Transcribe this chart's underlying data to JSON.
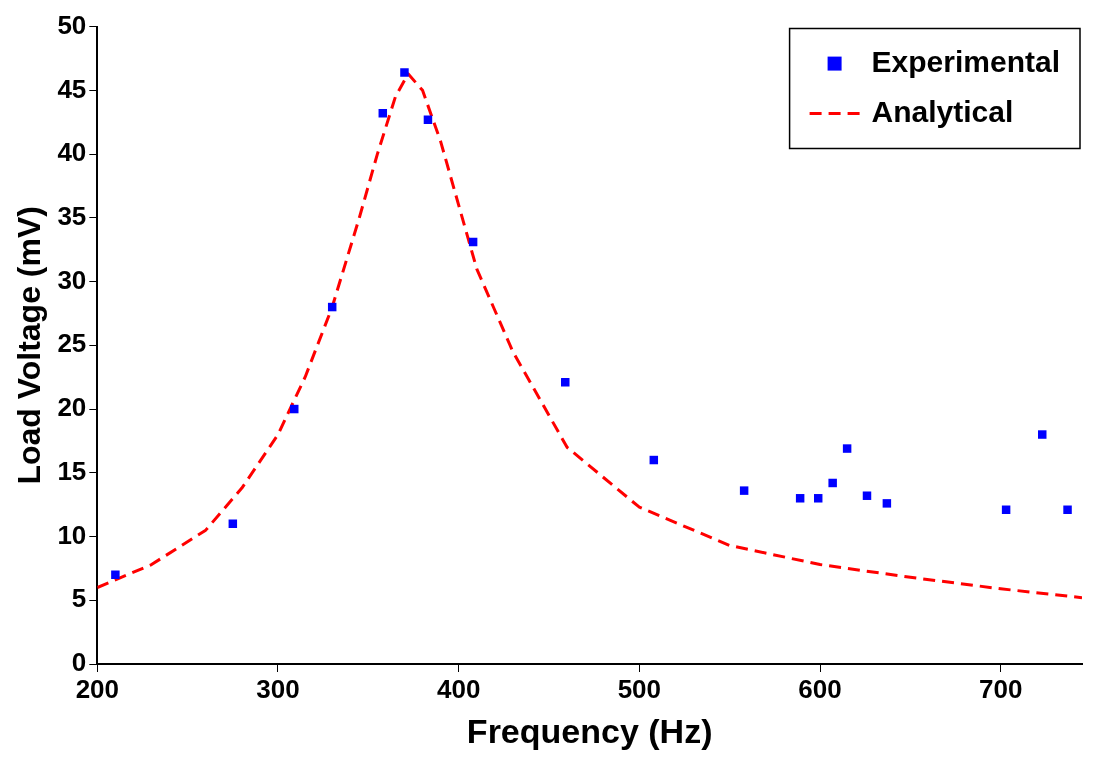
{
  "chart_data": {
    "type": "scatter",
    "xlabel": "Frequency (Hz)",
    "ylabel": "Load Voltage (mV)",
    "xlim": [
      200,
      745
    ],
    "xticks": [
      200,
      300,
      400,
      500,
      600,
      700
    ],
    "ylim": [
      0,
      50
    ],
    "yticks": [
      0,
      5,
      10,
      15,
      20,
      25,
      30,
      35,
      40,
      45,
      50
    ],
    "grid": false,
    "legend": "top right",
    "series": [
      {
        "name": "Experimental",
        "marker": "square",
        "color": "#0000ff",
        "x": [
          210,
          275,
          309,
          330,
          358,
          370,
          383,
          408,
          459,
          508,
          558,
          589,
          599,
          607,
          615,
          626,
          637,
          703,
          723,
          737
        ],
        "values": [
          7,
          11,
          20,
          28,
          43.2,
          46.4,
          42.7,
          33.1,
          22.1,
          16,
          13.6,
          13,
          13,
          14.2,
          16.9,
          13.2,
          12.6,
          12.1,
          18,
          12.1
        ]
      },
      {
        "name": "Analytical",
        "type": "line",
        "marker": "none",
        "line_style": "dashed",
        "color": "#ff0000",
        "x": [
          200,
          230,
          260,
          280,
          300,
          315,
          330,
          345,
          355,
          365,
          372,
          380,
          390,
          400,
          410,
          430,
          460,
          500,
          550,
          600,
          650,
          700,
          745
        ],
        "values": [
          6,
          7.8,
          10.5,
          13.8,
          18,
          22.5,
          28,
          35,
          40,
          44.5,
          46.3,
          45,
          41,
          36,
          31,
          24.5,
          17,
          12.3,
          9.3,
          7.8,
          6.8,
          5.9,
          5.2
        ]
      }
    ]
  }
}
